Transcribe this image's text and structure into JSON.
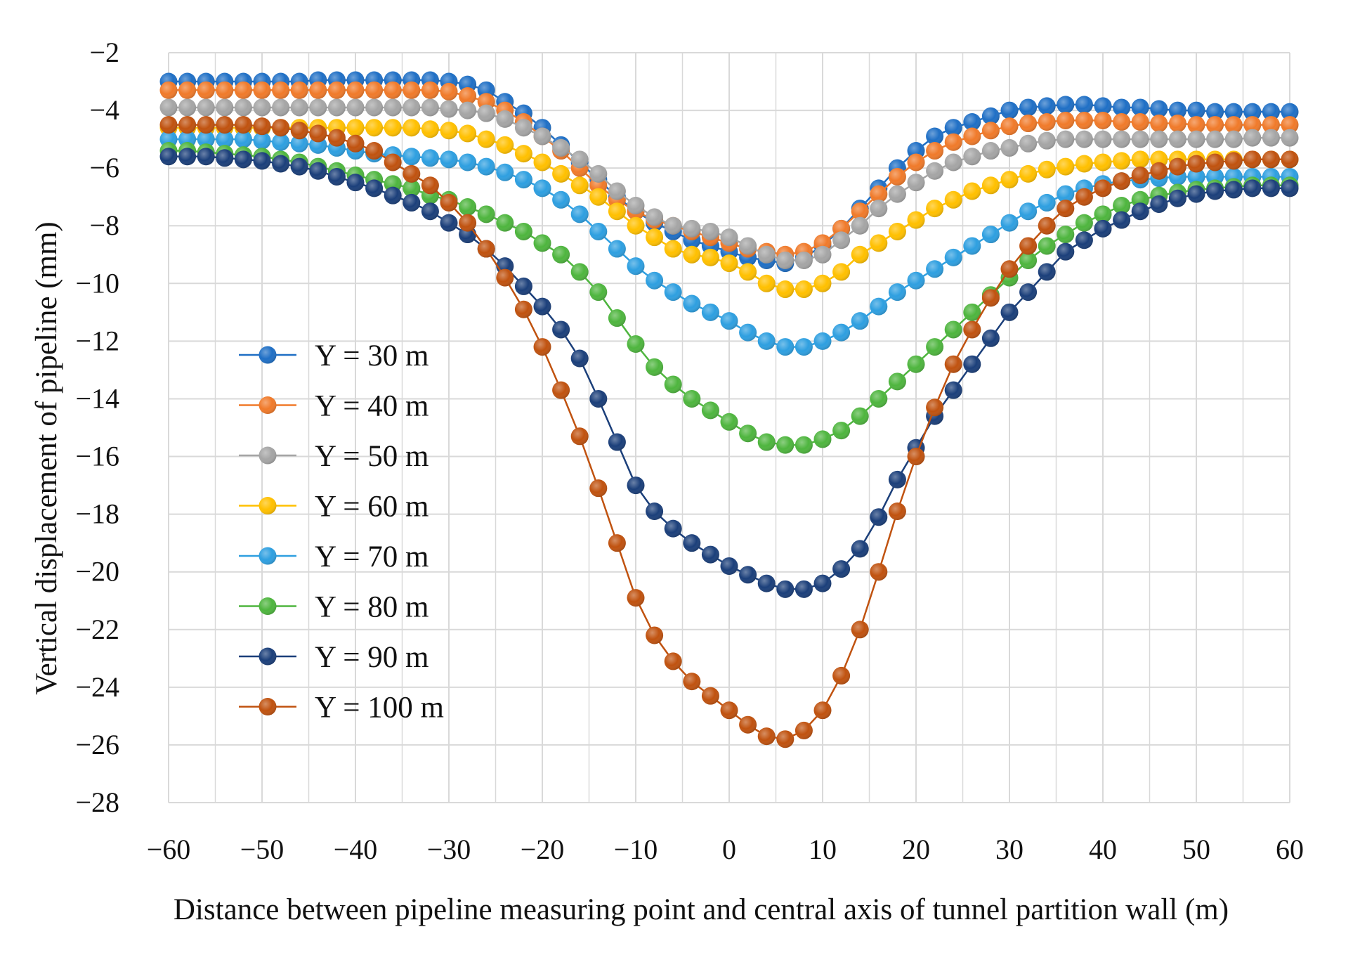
{
  "chart_data": {
    "type": "line",
    "title": "",
    "xlabel": "Distance between pipeline measuring point and central axis of tunnel partition wall (m)",
    "ylabel": "Vertical displacement of pipeline (mm)",
    "xlim": [
      -60,
      60
    ],
    "ylim": [
      -28,
      -2
    ],
    "xticks": [
      -60,
      -50,
      -40,
      -30,
      -20,
      -10,
      0,
      10,
      20,
      30,
      40,
      50,
      60
    ],
    "yticks": [
      -2,
      -4,
      -6,
      -8,
      -10,
      -12,
      -14,
      -16,
      -18,
      -20,
      -22,
      -24,
      -26,
      -28
    ],
    "xtick_labels": [
      "−60",
      "−50",
      "−40",
      "−30",
      "−20",
      "−10",
      "0",
      "10",
      "20",
      "30",
      "40",
      "50",
      "60"
    ],
    "ytick_labels": [
      "−2",
      "−4",
      "−6",
      "−8",
      "−10",
      "−12",
      "−14",
      "−16",
      "−18",
      "−20",
      "−22",
      "−24",
      "−26",
      "−28"
    ],
    "grid": true,
    "legend_position": "left-center",
    "x": [
      -60,
      -58,
      -56,
      -54,
      -52,
      -50,
      -48,
      -46,
      -44,
      -42,
      -40,
      -38,
      -36,
      -34,
      -32,
      -30,
      -28,
      -26,
      -24,
      -22,
      -20,
      -18,
      -16,
      -14,
      -12,
      -10,
      -8,
      -6,
      -4,
      -2,
      0,
      2,
      4,
      6,
      8,
      10,
      12,
      14,
      16,
      18,
      20,
      22,
      24,
      26,
      28,
      30,
      32,
      34,
      36,
      38,
      40,
      42,
      44,
      46,
      48,
      50,
      52,
      54,
      56,
      58,
      60
    ],
    "series": [
      {
        "name": "Y = 30 m",
        "color": "#1F6FC5",
        "values": [
          -3.0,
          -3.0,
          -3.0,
          -3.0,
          -3.0,
          -3.0,
          -3.0,
          -3.0,
          -2.95,
          -2.95,
          -2.95,
          -2.95,
          -2.95,
          -2.95,
          -2.95,
          -3.0,
          -3.1,
          -3.3,
          -3.7,
          -4.1,
          -4.6,
          -5.2,
          -5.8,
          -6.4,
          -7.0,
          -7.5,
          -7.9,
          -8.2,
          -8.5,
          -8.7,
          -8.9,
          -9.1,
          -9.2,
          -9.3,
          -9.1,
          -8.7,
          -8.1,
          -7.4,
          -6.7,
          -6.0,
          -5.4,
          -4.9,
          -4.6,
          -4.4,
          -4.2,
          -4.0,
          -3.9,
          -3.85,
          -3.8,
          -3.8,
          -3.85,
          -3.9,
          -3.9,
          -3.95,
          -4.0,
          -4.0,
          -4.05,
          -4.05,
          -4.05,
          -4.05,
          -4.05
        ]
      },
      {
        "name": "Y = 40 m",
        "color": "#F07A2A",
        "values": [
          -3.3,
          -3.3,
          -3.3,
          -3.3,
          -3.3,
          -3.3,
          -3.3,
          -3.3,
          -3.3,
          -3.3,
          -3.3,
          -3.3,
          -3.3,
          -3.3,
          -3.3,
          -3.35,
          -3.5,
          -3.7,
          -4.0,
          -4.4,
          -4.9,
          -5.4,
          -6.0,
          -6.6,
          -7.1,
          -7.5,
          -7.8,
          -8.0,
          -8.2,
          -8.4,
          -8.6,
          -8.8,
          -8.9,
          -9.0,
          -8.9,
          -8.6,
          -8.1,
          -7.5,
          -6.9,
          -6.3,
          -5.8,
          -5.4,
          -5.1,
          -4.9,
          -4.7,
          -4.55,
          -4.45,
          -4.4,
          -4.35,
          -4.35,
          -4.35,
          -4.4,
          -4.4,
          -4.45,
          -4.45,
          -4.5,
          -4.5,
          -4.5,
          -4.5,
          -4.5,
          -4.5
        ]
      },
      {
        "name": "Y = 50 m",
        "color": "#A5A5A5",
        "values": [
          -3.9,
          -3.9,
          -3.9,
          -3.9,
          -3.9,
          -3.9,
          -3.9,
          -3.9,
          -3.9,
          -3.9,
          -3.9,
          -3.9,
          -3.9,
          -3.9,
          -3.9,
          -3.95,
          -4.0,
          -4.1,
          -4.3,
          -4.6,
          -4.9,
          -5.3,
          -5.7,
          -6.2,
          -6.8,
          -7.3,
          -7.7,
          -8.0,
          -8.1,
          -8.2,
          -8.4,
          -8.7,
          -9.0,
          -9.2,
          -9.2,
          -9.0,
          -8.5,
          -8.0,
          -7.4,
          -6.9,
          -6.5,
          -6.1,
          -5.8,
          -5.6,
          -5.4,
          -5.3,
          -5.15,
          -5.05,
          -5.0,
          -5.0,
          -5.0,
          -5.0,
          -5.0,
          -5.0,
          -5.0,
          -5.0,
          -5.0,
          -5.0,
          -4.95,
          -4.95,
          -4.95
        ]
      },
      {
        "name": "Y = 60 m",
        "color": "#FFC000",
        "values": [
          -4.6,
          -4.6,
          -4.6,
          -4.6,
          -4.6,
          -4.6,
          -4.6,
          -4.6,
          -4.6,
          -4.6,
          -4.6,
          -4.6,
          -4.6,
          -4.6,
          -4.65,
          -4.7,
          -4.8,
          -5.0,
          -5.2,
          -5.5,
          -5.8,
          -6.2,
          -6.6,
          -7.0,
          -7.5,
          -8.0,
          -8.4,
          -8.8,
          -9.0,
          -9.1,
          -9.3,
          -9.6,
          -10.0,
          -10.2,
          -10.2,
          -10.0,
          -9.6,
          -9.0,
          -8.6,
          -8.2,
          -7.8,
          -7.4,
          -7.1,
          -6.8,
          -6.6,
          -6.4,
          -6.2,
          -6.05,
          -5.95,
          -5.85,
          -5.8,
          -5.75,
          -5.7,
          -5.7,
          -5.7,
          -5.7,
          -5.7,
          -5.7,
          -5.7,
          -5.7,
          -5.7
        ]
      },
      {
        "name": "Y = 70 m",
        "color": "#2E9FE0",
        "values": [
          -5.0,
          -5.0,
          -5.0,
          -5.0,
          -5.0,
          -5.05,
          -5.1,
          -5.15,
          -5.2,
          -5.3,
          -5.4,
          -5.5,
          -5.55,
          -5.6,
          -5.65,
          -5.7,
          -5.8,
          -5.95,
          -6.15,
          -6.4,
          -6.7,
          -7.1,
          -7.6,
          -8.2,
          -8.8,
          -9.4,
          -9.9,
          -10.3,
          -10.7,
          -11.0,
          -11.3,
          -11.7,
          -12.0,
          -12.2,
          -12.2,
          -12.0,
          -11.7,
          -11.3,
          -10.8,
          -10.3,
          -9.9,
          -9.5,
          -9.1,
          -8.7,
          -8.3,
          -7.9,
          -7.5,
          -7.2,
          -6.9,
          -6.7,
          -6.55,
          -6.45,
          -6.4,
          -6.35,
          -6.3,
          -6.3,
          -6.3,
          -6.3,
          -6.3,
          -6.3,
          -6.3
        ]
      },
      {
        "name": "Y = 80 m",
        "color": "#4EB53E",
        "values": [
          -5.4,
          -5.4,
          -5.45,
          -5.5,
          -5.55,
          -5.6,
          -5.7,
          -5.8,
          -5.95,
          -6.1,
          -6.25,
          -6.4,
          -6.55,
          -6.7,
          -6.95,
          -7.1,
          -7.35,
          -7.6,
          -7.9,
          -8.2,
          -8.6,
          -9.0,
          -9.6,
          -10.3,
          -11.2,
          -12.1,
          -12.9,
          -13.5,
          -14.0,
          -14.4,
          -14.8,
          -15.2,
          -15.5,
          -15.6,
          -15.6,
          -15.4,
          -15.1,
          -14.6,
          -14.0,
          -13.4,
          -12.8,
          -12.2,
          -11.6,
          -11.0,
          -10.4,
          -9.8,
          -9.2,
          -8.7,
          -8.3,
          -7.9,
          -7.6,
          -7.3,
          -7.1,
          -6.95,
          -6.85,
          -6.75,
          -6.7,
          -6.65,
          -6.6,
          -6.6,
          -6.6
        ]
      },
      {
        "name": "Y = 90 m",
        "color": "#1B3F7A",
        "values": [
          -5.6,
          -5.6,
          -5.6,
          -5.65,
          -5.7,
          -5.75,
          -5.85,
          -5.95,
          -6.1,
          -6.3,
          -6.5,
          -6.7,
          -6.95,
          -7.2,
          -7.5,
          -7.9,
          -8.3,
          -8.8,
          -9.4,
          -10.1,
          -10.8,
          -11.6,
          -12.6,
          -14.0,
          -15.5,
          -17.0,
          -17.9,
          -18.5,
          -19.0,
          -19.4,
          -19.8,
          -20.1,
          -20.4,
          -20.6,
          -20.6,
          -20.4,
          -19.9,
          -19.2,
          -18.1,
          -16.8,
          -15.7,
          -14.6,
          -13.7,
          -12.8,
          -11.9,
          -11.0,
          -10.3,
          -9.6,
          -8.9,
          -8.5,
          -8.1,
          -7.8,
          -7.5,
          -7.25,
          -7.05,
          -6.9,
          -6.8,
          -6.75,
          -6.7,
          -6.7,
          -6.7
        ]
      },
      {
        "name": "Y = 100 m",
        "color": "#C0520F",
        "values": [
          -4.5,
          -4.5,
          -4.5,
          -4.5,
          -4.5,
          -4.55,
          -4.6,
          -4.7,
          -4.8,
          -4.95,
          -5.15,
          -5.4,
          -5.8,
          -6.2,
          -6.6,
          -7.2,
          -7.9,
          -8.8,
          -9.8,
          -10.9,
          -12.2,
          -13.7,
          -15.3,
          -17.1,
          -19.0,
          -20.9,
          -22.2,
          -23.1,
          -23.8,
          -24.3,
          -24.8,
          -25.3,
          -25.7,
          -25.8,
          -25.5,
          -24.8,
          -23.6,
          -22.0,
          -20.0,
          -17.9,
          -16.0,
          -14.3,
          -12.8,
          -11.6,
          -10.5,
          -9.5,
          -8.7,
          -8.0,
          -7.4,
          -7.0,
          -6.7,
          -6.45,
          -6.25,
          -6.1,
          -5.95,
          -5.85,
          -5.8,
          -5.75,
          -5.7,
          -5.7,
          -5.7
        ]
      }
    ]
  }
}
